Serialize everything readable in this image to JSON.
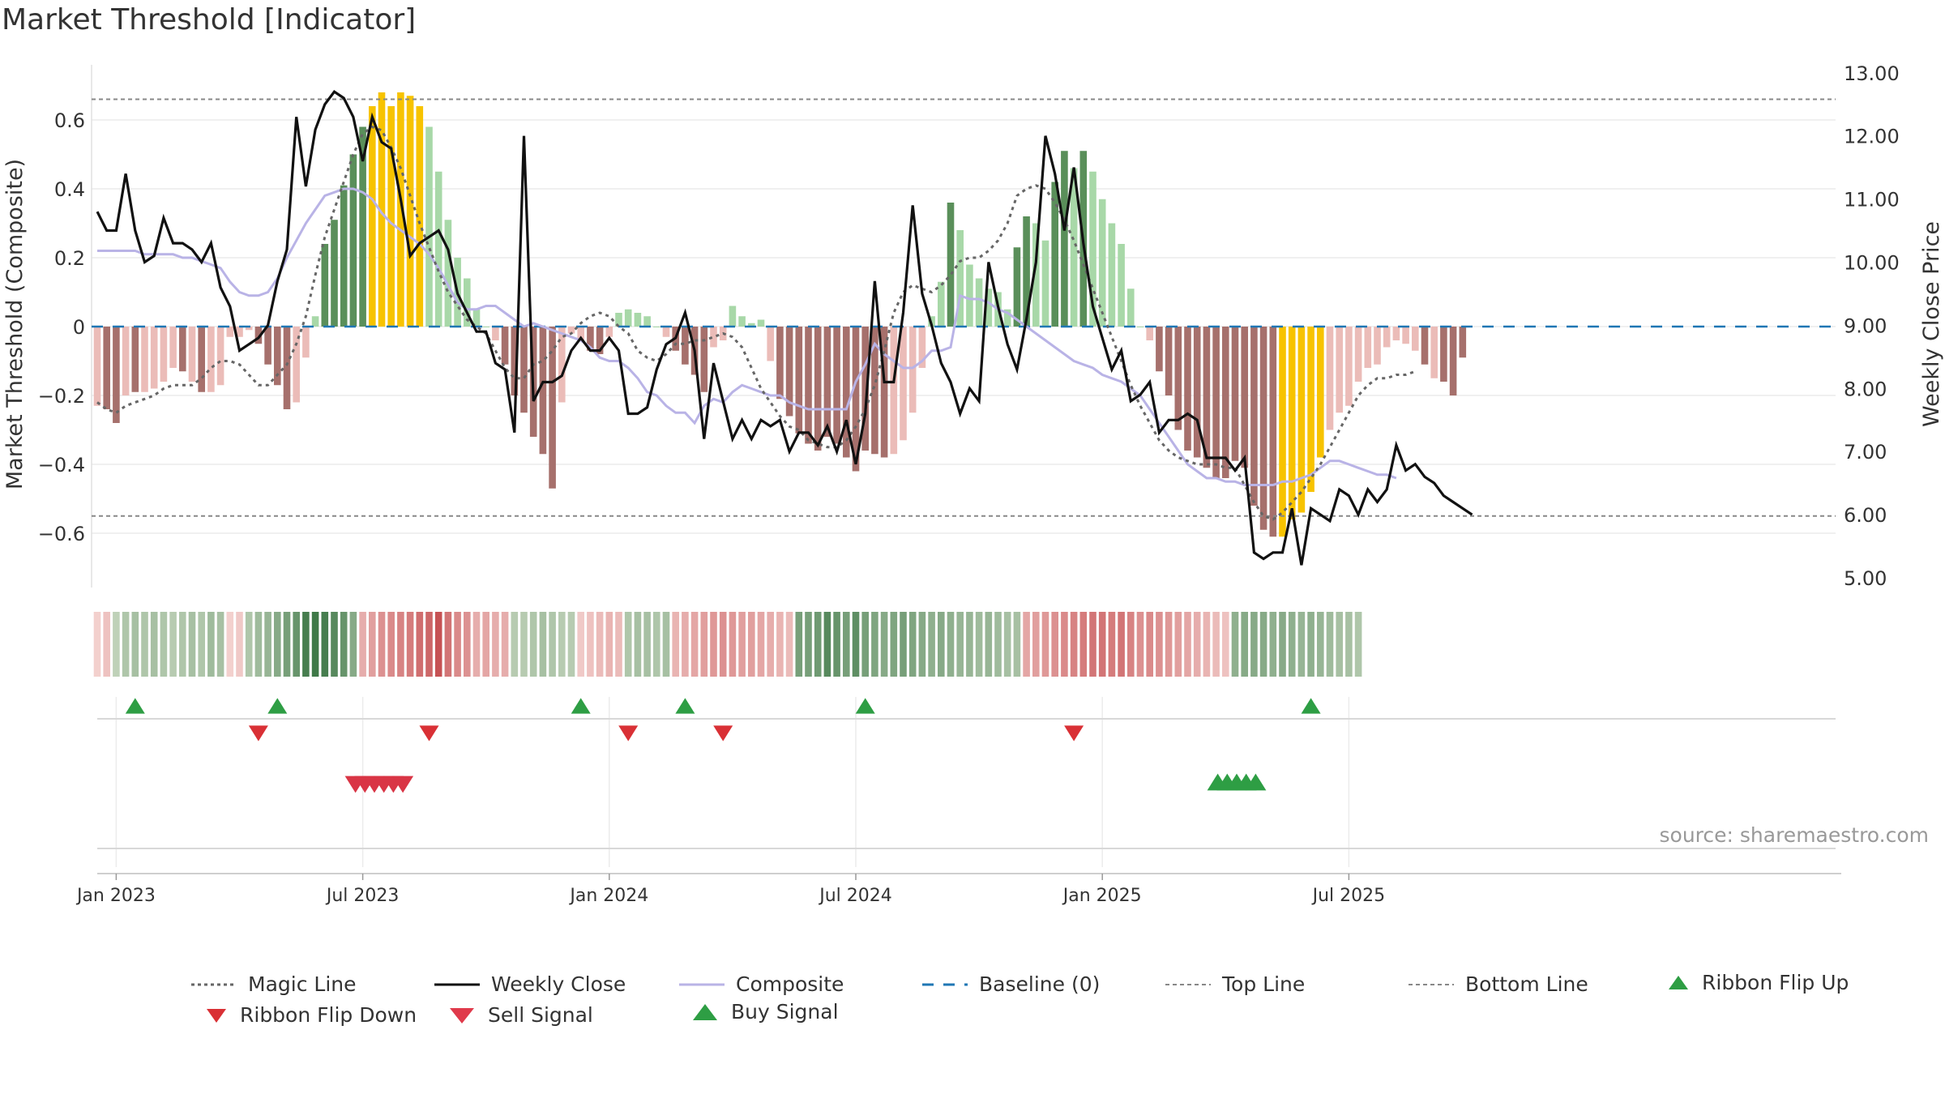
{
  "title": "Market Threshold [Indicator]",
  "source": "source: sharemaestro.com",
  "colors": {
    "magic_line": "#666666",
    "weekly_close": "#111111",
    "composite": "#b9b3e6",
    "baseline": "#1f77b4",
    "top_bottom_line": "#888888",
    "bar_green_dark": "#5a8f5a",
    "bar_green_light": "#a8d8a8",
    "bar_red_dark": "#a6706c",
    "bar_red_light": "#ebbcb8",
    "bar_yellow": "#f7c300",
    "buy_signal": "#2e9e44",
    "sell_signal": "#d93545",
    "ribbon_flip_up": "#2e9e44",
    "ribbon_flip_down": "#d93035"
  },
  "chart_data": {
    "type": "bar",
    "title": "Market Threshold [Indicator]",
    "ylabel": "Market Threshold (Composite)",
    "ylabel_right": "Weekly Close Price",
    "ylim": [
      -0.75,
      0.75
    ],
    "ylim_right": [
      4.8,
      13.1
    ],
    "y_ticks": [
      0.6,
      0.4,
      0.2,
      0,
      -0.2,
      -0.4,
      -0.6
    ],
    "y_tick_labels": [
      "0.6",
      "0.4",
      "0.2",
      "0",
      "−0.2",
      "−0.4",
      "−0.6"
    ],
    "y_right_ticks": [
      13,
      12,
      11,
      10,
      9,
      8,
      7,
      6,
      5
    ],
    "y_right_tick_labels": [
      "13.00",
      "12.00",
      "11.00",
      "10.00",
      "9.00",
      "8.00",
      "7.00",
      "6.00",
      "5.00"
    ],
    "x_ticks": [
      "Jan 2023",
      "Jul 2023",
      "Jan 2024",
      "Jul 2024",
      "Jan 2025",
      "Jul 2025"
    ],
    "x_tick_weeks": [
      0,
      26,
      52,
      78,
      104,
      130
    ],
    "top_line": 0.66,
    "bottom_line": -0.55,
    "grid": true,
    "legend_position": "bottom",
    "weeks_start_offset": -2,
    "bar_values": [
      -0.23,
      -0.24,
      -0.28,
      -0.2,
      -0.19,
      -0.19,
      -0.18,
      -0.16,
      -0.12,
      -0.13,
      -0.16,
      -0.19,
      -0.19,
      -0.17,
      -0.03,
      -0.03,
      -0.01,
      -0.05,
      -0.11,
      -0.17,
      -0.24,
      -0.22,
      -0.09,
      0.03,
      0.24,
      0.31,
      0.41,
      0.5,
      0.58,
      0.64,
      0.68,
      0.64,
      0.68,
      0.67,
      0.64,
      0.58,
      0.45,
      0.31,
      0.2,
      0.14,
      0.05,
      0.0,
      -0.04,
      -0.11,
      -0.2,
      -0.25,
      -0.32,
      -0.37,
      -0.47,
      -0.22,
      -0.02,
      -0.04,
      -0.07,
      -0.08,
      -0.03,
      0.04,
      0.05,
      0.04,
      0.03,
      0.0,
      -0.03,
      -0.07,
      -0.11,
      -0.14,
      -0.19,
      -0.06,
      -0.04,
      0.06,
      0.03,
      0.01,
      0.02,
      -0.1,
      -0.21,
      -0.26,
      -0.31,
      -0.34,
      -0.36,
      -0.32,
      -0.34,
      -0.38,
      -0.42,
      -0.36,
      -0.37,
      -0.38,
      -0.37,
      -0.33,
      -0.25,
      -0.12,
      0.03,
      0.13,
      0.36,
      0.28,
      0.18,
      0.14,
      0.11,
      0.1,
      0.05,
      0.23,
      0.32,
      0.3,
      0.25,
      0.42,
      0.51,
      0.46,
      0.51,
      0.45,
      0.37,
      0.3,
      0.24,
      0.11,
      0.0,
      -0.04,
      -0.13,
      -0.2,
      -0.3,
      -0.36,
      -0.38,
      -0.41,
      -0.44,
      -0.44,
      -0.39,
      -0.41,
      -0.52,
      -0.59,
      -0.61,
      -0.61,
      -0.56,
      -0.54,
      -0.48,
      -0.38,
      -0.3,
      -0.25,
      -0.23,
      -0.16,
      -0.12,
      -0.11,
      -0.06,
      -0.04,
      -0.05,
      -0.07,
      -0.11,
      -0.15,
      -0.16,
      -0.2,
      -0.09
    ],
    "bar_colors": [
      "rl",
      "rd",
      "rd",
      "rl",
      "rd",
      "rl",
      "rl",
      "rl",
      "rl",
      "rd",
      "rl",
      "rd",
      "rl",
      "rl",
      "rl",
      "rl",
      "rl",
      "rd",
      "rd",
      "rd",
      "rd",
      "rl",
      "rl",
      "gl",
      "gd",
      "gd",
      "gd",
      "gd",
      "gd",
      "y",
      "y",
      "y",
      "y",
      "y",
      "y",
      "gl",
      "gl",
      "gl",
      "gl",
      "gl",
      "gl",
      "gl",
      "rl",
      "rd",
      "rd",
      "rd",
      "rd",
      "rd",
      "rd",
      "rl",
      "rl",
      "rl",
      "rd",
      "rd",
      "rl",
      "gl",
      "gl",
      "gl",
      "gl",
      "gl",
      "rl",
      "rd",
      "rd",
      "rd",
      "rd",
      "rl",
      "rl",
      "gl",
      "gl",
      "gl",
      "gl",
      "rl",
      "rd",
      "rd",
      "rd",
      "rd",
      "rd",
      "rd",
      "rd",
      "rd",
      "rd",
      "rd",
      "rd",
      "rd",
      "rl",
      "rl",
      "rl",
      "rl",
      "gl",
      "gl",
      "gd",
      "gl",
      "gl",
      "gl",
      "gl",
      "gl",
      "gl",
      "gd",
      "gd",
      "gl",
      "gl",
      "gd",
      "gd",
      "gl",
      "gd",
      "gl",
      "gl",
      "gl",
      "gl",
      "gl",
      "gl",
      "rl",
      "rd",
      "rd",
      "rd",
      "rd",
      "rd",
      "rd",
      "rd",
      "rd",
      "rd",
      "rd",
      "rd",
      "rd",
      "rd",
      "y",
      "y",
      "y",
      "y",
      "y",
      "rl",
      "rl",
      "rl",
      "rl",
      "rl",
      "rl",
      "rl",
      "rl",
      "rl",
      "rl",
      "rd",
      "rl",
      "rd",
      "rd",
      "rd",
      "rl"
    ],
    "series": [
      {
        "name": "Magic Line",
        "values": [
          -0.22,
          -0.24,
          -0.25,
          -0.23,
          -0.22,
          -0.21,
          -0.2,
          -0.18,
          -0.17,
          -0.17,
          -0.17,
          -0.15,
          -0.12,
          -0.1,
          -0.1,
          -0.11,
          -0.14,
          -0.17,
          -0.17,
          -0.14,
          -0.11,
          -0.05,
          0.03,
          0.15,
          0.26,
          0.34,
          0.42,
          0.5,
          0.56,
          0.58,
          0.57,
          0.52,
          0.46,
          0.38,
          0.3,
          0.23,
          0.16,
          0.1,
          0.06,
          0.02,
          0.0,
          -0.02,
          -0.07,
          -0.12,
          -0.15,
          -0.15,
          -0.11,
          -0.1,
          -0.07,
          -0.03,
          -0.02,
          0.01,
          0.03,
          0.04,
          0.03,
          0.0,
          -0.02,
          -0.07,
          -0.09,
          -0.1,
          -0.08,
          -0.05,
          -0.05,
          -0.04,
          -0.04,
          -0.03,
          -0.02,
          -0.03,
          -0.06,
          -0.12,
          -0.18,
          -0.22,
          -0.26,
          -0.29,
          -0.3,
          -0.33,
          -0.34,
          -0.35,
          -0.35,
          -0.33,
          -0.29,
          -0.24,
          -0.17,
          -0.07,
          0.04,
          0.1,
          0.12,
          0.11,
          0.1,
          0.12,
          0.15,
          0.19,
          0.2,
          0.2,
          0.22,
          0.25,
          0.3,
          0.38,
          0.4,
          0.41,
          0.4,
          0.36,
          0.31,
          0.25,
          0.18,
          0.11,
          0.04,
          -0.03,
          -0.1,
          -0.17,
          -0.23,
          -0.28,
          -0.33,
          -0.36,
          -0.38,
          -0.39,
          -0.4,
          -0.4,
          -0.4,
          -0.41,
          -0.41,
          -0.46,
          -0.51,
          -0.55,
          -0.56,
          -0.54,
          -0.51,
          -0.48,
          -0.44,
          -0.4,
          -0.35,
          -0.3,
          -0.25,
          -0.2,
          -0.17,
          -0.15,
          -0.15,
          -0.14,
          -0.14,
          -0.13
        ]
      },
      {
        "name": "Weekly Close",
        "values": [
          10.8,
          10.5,
          10.5,
          11.4,
          10.5,
          10.0,
          10.1,
          10.7,
          10.3,
          10.3,
          10.2,
          10.0,
          10.3,
          9.6,
          9.3,
          8.6,
          8.7,
          8.8,
          9.0,
          9.7,
          10.2,
          12.3,
          11.2,
          12.1,
          12.5,
          12.7,
          12.6,
          12.3,
          11.6,
          12.3,
          11.9,
          11.8,
          11.0,
          10.1,
          10.3,
          10.4,
          10.5,
          10.2,
          9.5,
          9.2,
          8.9,
          8.9,
          8.4,
          8.3,
          7.3,
          12.0,
          7.8,
          8.1,
          8.1,
          8.2,
          8.6,
          8.8,
          8.6,
          8.6,
          8.8,
          8.6,
          7.6,
          7.6,
          7.7,
          8.3,
          8.7,
          8.8,
          9.2,
          8.6,
          7.2,
          8.4,
          7.8,
          7.2,
          7.5,
          7.2,
          7.5,
          7.4,
          7.5,
          7.0,
          7.3,
          7.3,
          7.1,
          7.4,
          7.0,
          7.5,
          6.8,
          7.6,
          9.7,
          8.1,
          8.1,
          9.2,
          10.9,
          9.5,
          9.0,
          8.4,
          8.1,
          7.6,
          8.0,
          7.8,
          10.0,
          9.3,
          8.7,
          8.3,
          9.1,
          10.0,
          12.0,
          11.4,
          10.5,
          11.5,
          10.3,
          9.3,
          8.8,
          8.3,
          8.6,
          7.8,
          7.9,
          8.1,
          7.3,
          7.5,
          7.5,
          7.6,
          7.5,
          6.9,
          6.9,
          6.9,
          6.7,
          6.9,
          5.4,
          5.3,
          5.4,
          5.4,
          6.1,
          5.2,
          6.1,
          6.0,
          5.9,
          6.4,
          6.3,
          6.0,
          6.4,
          6.2,
          6.4,
          7.1,
          6.7,
          6.8,
          6.6,
          6.5,
          6.3,
          6.2,
          6.1,
          6.0
        ]
      },
      {
        "name": "Composite",
        "values": [
          0.22,
          0.22,
          0.22,
          0.22,
          0.22,
          0.21,
          0.21,
          0.21,
          0.21,
          0.2,
          0.2,
          0.19,
          0.18,
          0.17,
          0.13,
          0.1,
          0.09,
          0.09,
          0.1,
          0.14,
          0.2,
          0.25,
          0.3,
          0.34,
          0.38,
          0.39,
          0.4,
          0.4,
          0.39,
          0.37,
          0.33,
          0.3,
          0.28,
          0.26,
          0.24,
          0.21,
          0.17,
          0.12,
          0.07,
          0.05,
          0.05,
          0.06,
          0.06,
          0.04,
          0.02,
          0.0,
          0.01,
          0.0,
          -0.01,
          -0.02,
          -0.03,
          -0.04,
          -0.06,
          -0.09,
          -0.1,
          -0.1,
          -0.12,
          -0.15,
          -0.19,
          -0.2,
          -0.23,
          -0.25,
          -0.25,
          -0.28,
          -0.23,
          -0.21,
          -0.22,
          -0.19,
          -0.17,
          -0.18,
          -0.19,
          -0.2,
          -0.2,
          -0.22,
          -0.23,
          -0.24,
          -0.24,
          -0.24,
          -0.24,
          -0.24,
          -0.16,
          -0.11,
          -0.05,
          -0.08,
          -0.1,
          -0.12,
          -0.12,
          -0.1,
          -0.07,
          -0.07,
          -0.06,
          0.09,
          0.08,
          0.08,
          0.07,
          0.05,
          0.04,
          0.02,
          0.0,
          -0.02,
          -0.04,
          -0.06,
          -0.08,
          -0.1,
          -0.11,
          -0.12,
          -0.14,
          -0.15,
          -0.16,
          -0.18,
          -0.2,
          -0.24,
          -0.28,
          -0.32,
          -0.36,
          -0.4,
          -0.42,
          -0.44,
          -0.44,
          -0.45,
          -0.45,
          -0.46,
          -0.46,
          -0.46,
          -0.46,
          -0.45,
          -0.45,
          -0.44,
          -0.43,
          -0.41,
          -0.39,
          -0.39,
          -0.4,
          -0.41,
          -0.42,
          -0.43,
          -0.43,
          -0.44
        ]
      },
      {
        "name": "Baseline (0)",
        "values": [
          0
        ]
      },
      {
        "name": "Top Line",
        "values": [
          0.66
        ]
      },
      {
        "name": "Bottom Line",
        "values": [
          -0.55
        ]
      }
    ],
    "ribbon": [
      -0.05,
      -0.15,
      0.15,
      0.25,
      0.3,
      0.25,
      0.3,
      0.25,
      0.2,
      0.25,
      0.3,
      0.25,
      0.35,
      0.3,
      -0.05,
      -0.1,
      0.25,
      0.35,
      0.4,
      0.5,
      0.6,
      0.7,
      0.9,
      0.95,
      0.9,
      0.8,
      0.7,
      0.5,
      -0.3,
      -0.4,
      -0.5,
      -0.55,
      -0.6,
      -0.65,
      -0.75,
      -0.8,
      -0.95,
      -0.7,
      -0.55,
      -0.5,
      -0.3,
      -0.35,
      -0.3,
      -0.3,
      0.2,
      0.2,
      0.25,
      0.3,
      0.25,
      0.2,
      0.2,
      -0.1,
      -0.15,
      -0.2,
      -0.25,
      -0.2,
      0.25,
      0.3,
      0.3,
      0.25,
      0.3,
      -0.25,
      -0.3,
      -0.35,
      -0.4,
      -0.45,
      -0.5,
      -0.45,
      -0.4,
      -0.4,
      -0.35,
      -0.3,
      -0.25,
      -0.2,
      0.6,
      0.6,
      0.65,
      0.8,
      0.7,
      0.6,
      0.75,
      0.6,
      0.55,
      0.5,
      0.55,
      0.6,
      0.55,
      0.5,
      0.45,
      0.5,
      0.45,
      0.4,
      0.4,
      0.35,
      0.4,
      0.35,
      0.3,
      0.3,
      -0.35,
      -0.4,
      -0.45,
      -0.5,
      -0.55,
      -0.6,
      -0.65,
      -0.7,
      -0.7,
      -0.65,
      -0.7,
      -0.6,
      -0.5,
      -0.55,
      -0.5,
      -0.45,
      -0.4,
      -0.35,
      -0.3,
      -0.25,
      -0.2,
      -0.15,
      0.45,
      0.5,
      0.5,
      0.5,
      0.45,
      0.5,
      0.45,
      0.4,
      0.45,
      0.4,
      0.35,
      0.3,
      0.3,
      0.25
    ],
    "ribbon_flip_up_weeks": [
      2,
      17,
      49,
      60,
      79,
      126
    ],
    "ribbon_flip_down_weeks": [
      15,
      33,
      54,
      64,
      101
    ],
    "sell_signal_weeks": [
      26,
      27,
      28,
      29,
      30,
      31
    ],
    "buy_signal_weeks": [
      116,
      117,
      118,
      119,
      120
    ],
    "legend": [
      "Magic Line",
      "Weekly Close",
      "Composite",
      "Baseline (0)",
      "Top Line",
      "Bottom Line",
      "Ribbon Flip Up",
      "Ribbon Flip Down",
      "Sell Signal",
      "Buy Signal"
    ]
  }
}
